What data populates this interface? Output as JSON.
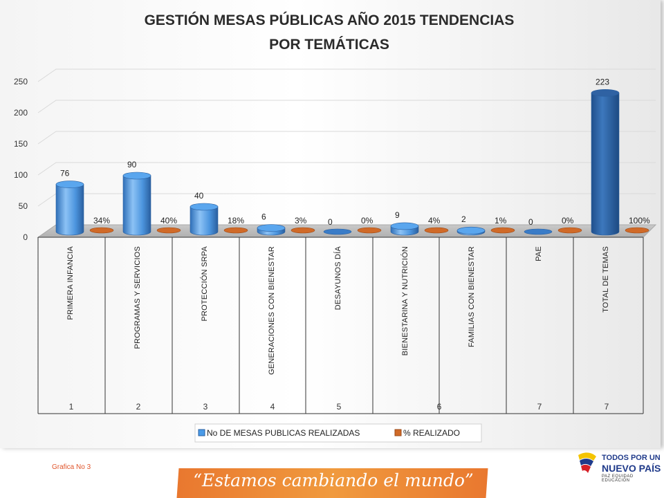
{
  "chart_data": {
    "type": "bar",
    "title": "GESTIÓN MESAS PÚBLICAS  AÑO 2015 TENDENCIAS POR TEMÁTICAS",
    "title_lines": [
      "GESTIÓN MESAS PÚBLICAS  AÑO 2015 TENDENCIAS",
      "POR TEMÁTICAS"
    ],
    "categories": [
      "PRIMERA INFANCIA",
      "PROGRAMAS Y SERVICIOS",
      "PROTECCIÓN SRPA",
      "GENERACIONES CON BIENESTAR",
      "DESAYUNOS DÍA",
      "BIENESTARINA Y NUTRICIÓN",
      "FAMILIAS CON BIENESTAR",
      "PAE",
      "TOTAL DE TEMAS"
    ],
    "category_numbers": [
      "1",
      "2",
      "3",
      "4",
      "5",
      "6",
      "7",
      "7"
    ],
    "series": [
      {
        "name": "No DE MESAS PUBLICAS  REALIZADAS",
        "values": [
          76,
          90,
          40,
          6,
          0,
          9,
          2,
          0,
          223
        ],
        "labels": [
          "76",
          "90",
          "40",
          "6",
          "0",
          "9",
          "2",
          "0",
          "223"
        ],
        "color": "#4a9be8"
      },
      {
        "name": "% REALIZADO",
        "values": [
          34,
          40,
          18,
          3,
          0,
          4,
          1,
          0,
          100
        ],
        "labels": [
          "34%",
          "40%",
          "18%",
          "3%",
          "0%",
          "4%",
          "1%",
          "0%",
          "100%"
        ],
        "color": "#d06a28"
      }
    ],
    "y_ticks": [
      "0",
      "50",
      "100",
      "150",
      "200",
      "250"
    ],
    "ylim": [
      0,
      250
    ],
    "grid": true,
    "legend_position": "bottom"
  },
  "footer": {
    "caption": "Grafica No 3",
    "slogan": "“Estamos cambiando el mundo”",
    "logo_line1": "TODOS POR UN",
    "logo_line2": "NUEVO PAÍS",
    "logo_line3": "PAZ  EQUIDAD  EDUCACIÓN"
  }
}
